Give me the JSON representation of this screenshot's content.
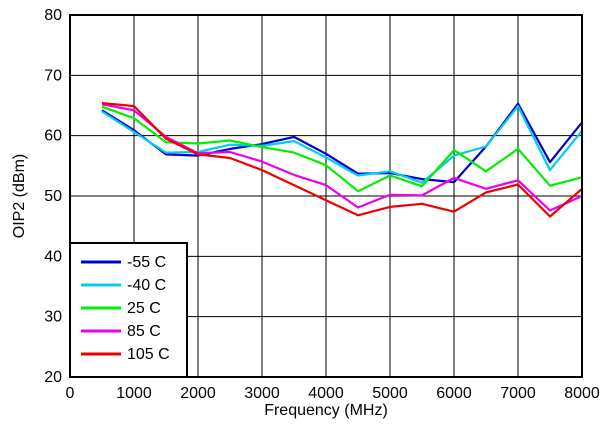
{
  "chart_data": {
    "type": "line",
    "xlabel": "Frequency (MHz)",
    "ylabel": "OIP2 (dBm)",
    "xlim": [
      0,
      8000
    ],
    "ylim": [
      20,
      80
    ],
    "xticks": [
      0,
      1000,
      2000,
      3000,
      4000,
      5000,
      6000,
      7000,
      8000
    ],
    "yticks": [
      20,
      30,
      40,
      50,
      60,
      70,
      80
    ],
    "grid": true,
    "legend_position": "bottom-left",
    "x": [
      500,
      1000,
      1500,
      2000,
      2500,
      3000,
      3500,
      4000,
      4500,
      5000,
      5500,
      6000,
      6500,
      7000,
      7500,
      8000
    ],
    "series": [
      {
        "name": "-55 C",
        "color": "#0000cc",
        "values": [
          64.2,
          60.9,
          56.9,
          56.7,
          57.8,
          58.6,
          59.8,
          57.0,
          53.7,
          53.8,
          52.8,
          52.3,
          58.2,
          65.3,
          55.6,
          62.2
        ]
      },
      {
        "name": "-40 C",
        "color": "#00ccee",
        "values": [
          64.0,
          60.6,
          57.2,
          57.3,
          58.5,
          58.3,
          59.1,
          56.4,
          53.4,
          54.1,
          52.2,
          56.7,
          58.2,
          64.9,
          54.3,
          60.8
        ]
      },
      {
        "name": "25 C",
        "color": "#00ee00",
        "values": [
          64.8,
          62.9,
          58.9,
          58.7,
          59.2,
          58.1,
          57.2,
          55.1,
          50.8,
          53.4,
          51.6,
          57.6,
          54.1,
          57.8,
          51.7,
          53.1
        ]
      },
      {
        "name": "85 C",
        "color": "#ee00ee",
        "values": [
          65.2,
          64.2,
          59.8,
          57.1,
          57.3,
          55.7,
          53.5,
          51.8,
          48.1,
          50.2,
          50.1,
          53.0,
          51.2,
          52.6,
          47.6,
          50.0
        ]
      },
      {
        "name": "105 C",
        "color": "#ee0000",
        "values": [
          65.4,
          64.9,
          59.5,
          56.9,
          56.3,
          54.3,
          51.8,
          49.3,
          46.8,
          48.2,
          48.7,
          47.4,
          50.6,
          51.9,
          46.6,
          51.2
        ]
      }
    ]
  }
}
